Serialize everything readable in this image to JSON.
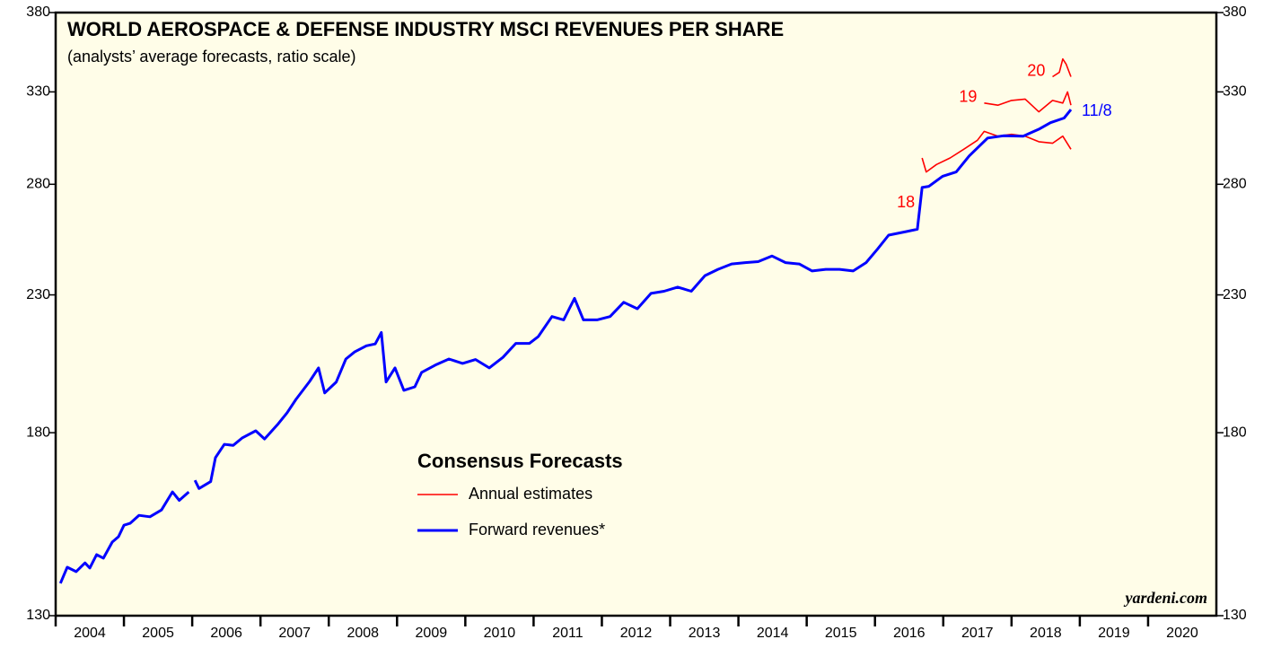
{
  "chart_data": {
    "type": "line",
    "title": "WORLD AEROSPACE & DEFENSE INDUSTRY MSCI REVENUES PER SHARE",
    "subtitle": "(analysts’ average forecasts, ratio scale)",
    "source": "yardeni.com",
    "log_scale": true,
    "xlim": [
      2004,
      2021
    ],
    "xticks": [
      {
        "value": 2004.5,
        "label": "2004"
      },
      {
        "value": 2005.5,
        "label": "2005"
      },
      {
        "value": 2006.5,
        "label": "2006"
      },
      {
        "value": 2007.5,
        "label": "2007"
      },
      {
        "value": 2008.5,
        "label": "2008"
      },
      {
        "value": 2009.5,
        "label": "2009"
      },
      {
        "value": 2010.5,
        "label": "2010"
      },
      {
        "value": 2011.5,
        "label": "2011"
      },
      {
        "value": 2012.5,
        "label": "2012"
      },
      {
        "value": 2013.5,
        "label": "2013"
      },
      {
        "value": 2014.5,
        "label": "2014"
      },
      {
        "value": 2015.5,
        "label": "2015"
      },
      {
        "value": 2016.5,
        "label": "2016"
      },
      {
        "value": 2017.5,
        "label": "2017"
      },
      {
        "value": 2018.5,
        "label": "2018"
      },
      {
        "value": 2019.5,
        "label": "2019"
      },
      {
        "value": 2020.5,
        "label": "2020"
      }
    ],
    "ylim": [
      130,
      380
    ],
    "yticks": [
      130,
      180,
      230,
      280,
      330,
      380
    ],
    "legend": {
      "title": "Consensus Forecasts",
      "items": [
        {
          "label": "Annual estimates",
          "color": "#ff0000"
        },
        {
          "label": "Forward revenues*",
          "color": "#0000ff"
        }
      ]
    },
    "series": [
      {
        "name": "18",
        "color": "#ff0000",
        "x": [
          2016.69,
          2016.75,
          2016.9,
          2017.1,
          2017.3,
          2017.5,
          2017.6,
          2017.8,
          2018.0,
          2018.2,
          2018.4,
          2018.6,
          2018.75,
          2018.87
        ],
        "values": [
          293.4,
          286.2,
          290,
          293.4,
          298,
          302.8,
          307.6,
          305,
          306,
          305,
          302,
          301.2,
          305,
          298
        ]
      },
      {
        "name": "19",
        "color": "#ff0000",
        "x": [
          2017.6,
          2017.8,
          2018.0,
          2018.2,
          2018.4,
          2018.6,
          2018.75,
          2018.82,
          2018.87
        ],
        "values": [
          323.5,
          322.3,
          325,
          325.8,
          318.5,
          325,
          323.5,
          330,
          322.3
        ]
      },
      {
        "name": "20",
        "color": "#ff0000",
        "x": [
          2018.6,
          2018.7,
          2018.75,
          2018.8,
          2018.87
        ],
        "values": [
          339,
          341.7,
          349.9,
          346.6,
          339
        ]
      },
      {
        "name": "11/8",
        "color": "#0000ff",
        "x": [
          2004.07,
          2004.17,
          2004.3,
          2004.43,
          2004.5,
          2004.6,
          2004.7,
          2004.83,
          2004.92,
          2005.0,
          2005.09,
          2005.22,
          2005.38,
          2005.55,
          2005.71,
          2005.81,
          2005.95,
          2006.0,
          2006.04,
          2006.1,
          2006.27,
          2006.34,
          2006.47,
          2006.6,
          2006.73,
          2006.93,
          2007.06,
          2007.26,
          2007.39,
          2007.52,
          2007.72,
          2007.85,
          2007.94,
          2008.11,
          2008.25,
          2008.38,
          2008.55,
          2008.68,
          2008.77,
          2008.84,
          2008.97,
          2009.1,
          2009.26,
          2009.36,
          2009.56,
          2009.76,
          2009.96,
          2010.15,
          2010.35,
          2010.55,
          2010.74,
          2010.94,
          2011.07,
          2011.27,
          2011.44,
          2011.6,
          2011.73,
          2011.93,
          2012.12,
          2012.32,
          2012.52,
          2012.72,
          2012.91,
          2013.11,
          2013.31,
          2013.51,
          2013.7,
          2013.9,
          2014.1,
          2014.29,
          2014.49,
          2014.69,
          2014.89,
          2015.08,
          2015.28,
          2015.48,
          2015.68,
          2015.87,
          2016.04,
          2016.2,
          2016.46,
          2016.62,
          2016.69,
          2016.79,
          2016.99,
          2017.19,
          2017.38,
          2017.65,
          2017.88,
          2018.17,
          2018.41,
          2018.57,
          2018.77,
          2018.87
        ],
        "values": [
          137.7,
          141.7,
          140.6,
          142.8,
          141.5,
          144.9,
          144,
          148.2,
          149.6,
          152.7,
          153.2,
          155.4,
          155,
          156.9,
          162,
          159.6,
          162,
          null,
          165.4,
          163,
          165,
          172.2,
          176.3,
          176,
          178.3,
          180.6,
          178,
          182.9,
          186.5,
          191,
          197.2,
          202,
          193.2,
          197,
          205.2,
          207.8,
          210.1,
          210.8,
          215.1,
          197,
          202,
          194.1,
          195.3,
          200.4,
          203,
          205.2,
          203.6,
          205,
          202,
          205.8,
          211,
          211,
          213.6,
          221.3,
          220,
          228.6,
          220,
          220,
          221.3,
          227,
          224.4,
          230.6,
          231.5,
          233.2,
          231.5,
          238,
          240.7,
          243,
          243.6,
          244,
          246.5,
          243.6,
          243,
          240,
          240.7,
          240.7,
          240,
          243.6,
          249.6,
          255.8,
          257.4,
          258.5,
          278.4,
          279,
          284,
          286.2,
          294.5,
          304,
          305.2,
          305,
          309,
          312.4,
          315,
          319.8
        ]
      }
    ]
  }
}
